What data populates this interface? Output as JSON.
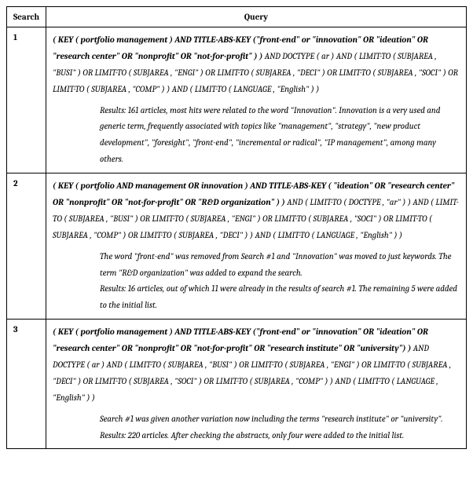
{
  "header": {
    "search": "Search",
    "query": "Query"
  },
  "rows": [
    {
      "num": "1",
      "bold_part": "( KEY ( portfolio management )  AND  TITLE-ABS-KEY (\"front-end\" or \"innovation\"  OR  \"ideation\"  OR  \"research center\"  OR  \"nonprofit\"  OR  \"not-for-profit\" ) )",
      "rest": "  AND  DOCTYPE ( ar )  AND  ( LIMIT-TO ( SUBJAREA ,  \"BUSI\" )  OR  LIMIT-TO ( SUBJAREA ,  \"ENGI\" )  OR  LIMIT-TO ( SUBJAREA ,  \"DECI\" )  OR  LIMIT-TO ( SUBJAREA ,  \"SOCI\" )  OR  LIMIT-TO ( SUBJAREA ,  \"COMP\" ) )  AND  ( LIMIT-TO ( LANGUAGE ,  \"English\" ) )",
      "results": "Results: 161 articles, most hits were related to the word \"Innovation\". Innovation is a very used and generic term, frequently associated with topics like \"management\", \"strategy\", \"new product development\", \"foresight\", \"front-end\", \"incremental or radical\", \"IP management\", among many others."
    },
    {
      "num": "2",
      "bold_part": "( KEY ( portfolio  AND management  OR  innovation )  AND  TITLE-ABS-KEY ( \"ideation\"  OR  \"research center\"  OR  \"nonprofit\"  OR  \"not-for-profit\"  OR  \"R&D organization\" ) )",
      "rest": "  AND  ( LIMIT-TO ( DOCTYPE ,  \"ar\" ) )  AND  ( LIMIT-TO ( SUBJAREA ,  \"BUSI\" )  OR  LIMIT-TO ( SUBJAREA ,  \"ENGI\" )  OR  LIMIT-TO ( SUBJAREA ,  \"SOCI\" )  OR  LIMIT-TO ( SUBJAREA ,  \"COMP\" )  OR  LIMIT-TO ( SUBJAREA ,  \"DECI\" ) )  AND  ( LIMIT-TO ( LANGUAGE ,  \"English\" ) )",
      "results": "The word \"front-end\" was removed from Search #1 and \"Innovation\" was moved to just keywords. The term \"R&D organization\" was added to expand the search.\nResults: 16 articles, out of which 11 were already in the results of search #1. The remaining 5 were added to the initial list."
    },
    {
      "num": "3",
      "bold_part": "( KEY ( portfolio management )  AND  TITLE-ABS-KEY (\"front-end\" or \"innovation\"  OR  \"ideation\"  OR  \"research center\"  OR  \"nonprofit\"  OR  \"not-for-profit\" OR \"research institute\" OR \"university\") )",
      "rest": "  AND  DOCTYPE ( ar )  AND  ( LIMIT-TO ( SUBJAREA ,  \"BUSI\" )  OR  LIMIT-TO ( SUBJAREA ,  \"ENGI\" )  OR  LIMIT-TO ( SUBJAREA ,  \"DECI\" )  OR  LIMIT-TO ( SUBJAREA ,  \"SOCI\" )  OR  LIMIT-TO ( SUBJAREA ,  \"COMP\" ) )  AND  ( LIMIT-TO ( LANGUAGE ,  \"English\" ) )",
      "results": "Search #1 was given another variation now including the terms \"research institute\" or \"university\".\nResults: 220 articles. After checking the abstracts, only four were added to the initial list."
    }
  ]
}
